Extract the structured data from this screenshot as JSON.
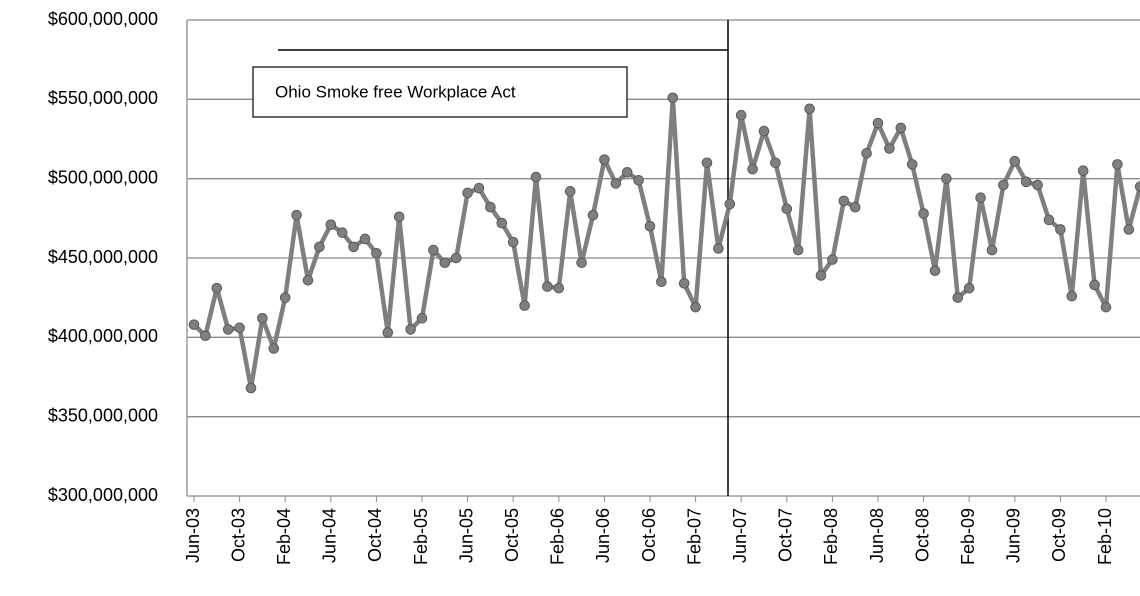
{
  "chart_data": {
    "type": "line",
    "annotation": "Ohio Smoke free Workplace Act",
    "categories": [
      "Jun-03",
      null,
      null,
      null,
      "Oct-03",
      null,
      null,
      null,
      "Feb-04",
      null,
      null,
      null,
      "Jun-04",
      null,
      null,
      null,
      "Oct-04",
      null,
      null,
      null,
      "Feb-05",
      null,
      null,
      null,
      "Jun-05",
      null,
      null,
      null,
      "Oct-05",
      null,
      null,
      null,
      "Feb-06",
      null,
      null,
      null,
      "Jun-06",
      null,
      null,
      null,
      "Oct-06",
      null,
      null,
      null,
      "Feb-07",
      null,
      null,
      null,
      "Jun-07",
      null,
      null,
      null,
      "Oct-07",
      null,
      null,
      null,
      "Feb-08",
      null,
      null,
      null,
      "Jun-08",
      null,
      null,
      null,
      "Oct-08",
      null,
      null,
      null,
      "Feb-09",
      null,
      null,
      null,
      "Jun-09",
      null,
      null,
      null,
      "Oct-09",
      null,
      null,
      null,
      "Feb-10",
      null,
      null,
      null
    ],
    "series": [
      {
        "color": "#7f7f7f",
        "values": [
          408000000,
          401000000,
          431000000,
          405000000,
          406000000,
          368000000,
          412000000,
          393000000,
          425000000,
          477000000,
          436000000,
          457000000,
          471000000,
          466000000,
          457000000,
          462000000,
          453000000,
          403000000,
          476000000,
          405000000,
          412000000,
          455000000,
          447000000,
          450000000,
          491000000,
          494000000,
          482000000,
          472000000,
          460000000,
          420000000,
          501000000,
          432000000,
          431000000,
          492000000,
          447000000,
          477000000,
          512000000,
          497000000,
          504000000,
          499000000,
          470000000,
          435000000,
          551000000,
          434000000,
          419000000,
          510000000,
          456000000,
          484000000,
          540000000,
          506000000,
          530000000,
          510000000,
          481000000,
          455000000,
          544000000,
          439000000,
          449000000,
          486000000,
          482000000,
          516000000,
          535000000,
          519000000,
          532000000,
          509000000,
          478000000,
          442000000,
          500000000,
          425000000,
          431000000,
          488000000,
          455000000,
          496000000,
          511000000,
          498000000,
          496000000,
          474000000,
          468000000,
          426000000,
          505000000,
          433000000,
          419000000,
          509000000,
          468000000,
          495000000
        ]
      }
    ],
    "ylim": [
      300000000,
      600000000
    ],
    "yticks": [
      {
        "value": 300000000,
        "label": "$300,000,000"
      },
      {
        "value": 350000000,
        "label": "$350,000,000"
      },
      {
        "value": 400000000,
        "label": "$400,000,000"
      },
      {
        "value": 450000000,
        "label": "$450,000,000"
      },
      {
        "value": 500000000,
        "label": "$500,000,000"
      },
      {
        "value": 550000000,
        "label": "$550,000,000"
      },
      {
        "value": 600000000,
        "label": "$600,000,000"
      }
    ],
    "grid": true
  }
}
